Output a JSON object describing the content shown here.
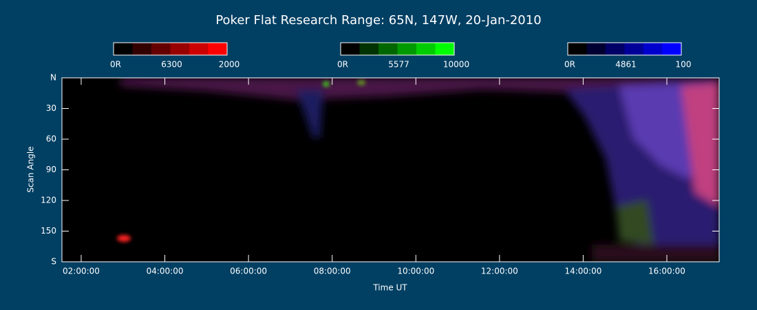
{
  "chart_data": {
    "type": "keogram",
    "title": "Poker Flat Research Range: 65N, 147W, 20-Jan-2010",
    "x_label": "Time UT",
    "y_label": "Scan Angle",
    "xlim": [
      1.54,
      17.25
    ],
    "xticks": [
      {
        "value": 2,
        "label": "02:00:00"
      },
      {
        "value": 4,
        "label": "04:00:00"
      },
      {
        "value": 6,
        "label": "06:00:00"
      },
      {
        "value": 8,
        "label": "08:00:00"
      },
      {
        "value": 10,
        "label": "10:00:00"
      },
      {
        "value": 12,
        "label": "12:00:00"
      },
      {
        "value": 14,
        "label": "14:00:00"
      },
      {
        "value": 16,
        "label": "16:00:00"
      }
    ],
    "ylim": [
      0,
      180
    ],
    "yticks": [
      {
        "value": 0,
        "label": "N"
      },
      30,
      60,
      90,
      120,
      150,
      {
        "value": 180,
        "label": "S"
      }
    ],
    "colorbars": [
      {
        "line": "6300",
        "min": {
          "value": 0,
          "label": "0R"
        },
        "max": 2000,
        "color": "#ff0000"
      },
      {
        "line": "5577",
        "min": {
          "value": 0,
          "label": "0R"
        },
        "max": 10000,
        "color": "#00ff00"
      },
      {
        "line": "4861",
        "min": {
          "value": 0,
          "label": "0R"
        },
        "max": 100,
        "color": "#0000ff"
      }
    ]
  }
}
